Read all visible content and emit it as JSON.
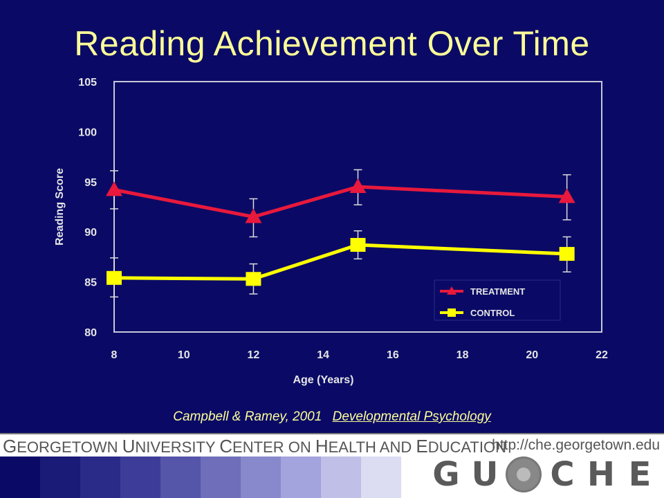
{
  "slide": {
    "title": "Reading Achievement Over Time",
    "citation_authors": "Campbell & Ramey, 2001",
    "citation_journal": "Developmental Psychology"
  },
  "footer": {
    "org_parts": [
      "G",
      "EORGETOWN ",
      "U",
      "NIVERSITY ",
      "C",
      "ENTER ON ",
      "H",
      "EALTH AND ",
      "E",
      "DUCATION"
    ],
    "url": "http://che.georgetown.edu",
    "logo_letters": [
      "G",
      "U",
      "C",
      "H",
      "E"
    ],
    "stripe_colors": [
      "#0a0a66",
      "#1a1a77",
      "#2a2a88",
      "#3d3d99",
      "#5555aa",
      "#6e6ebb",
      "#8888cc",
      "#a3a3dd",
      "#bfbfe8",
      "#dcdcf3"
    ]
  },
  "chart_data": {
    "type": "line",
    "xlabel": "Age (Years)",
    "ylabel": "Reading Score",
    "xlim": [
      8,
      22
    ],
    "ylim": [
      80,
      105
    ],
    "xticks": [
      8,
      10,
      12,
      14,
      16,
      18,
      20,
      22
    ],
    "yticks": [
      80,
      85,
      90,
      95,
      100,
      105
    ],
    "legend_position": "bottom-right",
    "series": [
      {
        "name": "TREATMENT",
        "color": "#e8193c",
        "marker": "triangle",
        "x": [
          8,
          12,
          15,
          21
        ],
        "y": [
          94.2,
          91.5,
          94.5,
          93.5
        ],
        "err_low": [
          92.3,
          89.5,
          92.7,
          91.2
        ],
        "err_high": [
          96.1,
          93.3,
          96.2,
          95.7
        ]
      },
      {
        "name": "CONTROL",
        "color": "#ffff00",
        "marker": "square",
        "x": [
          8,
          12,
          15,
          21
        ],
        "y": [
          85.4,
          85.3,
          88.7,
          87.8
        ],
        "err_low": [
          83.5,
          83.8,
          87.3,
          86.0
        ],
        "err_high": [
          87.4,
          86.8,
          90.1,
          89.5
        ]
      }
    ]
  }
}
